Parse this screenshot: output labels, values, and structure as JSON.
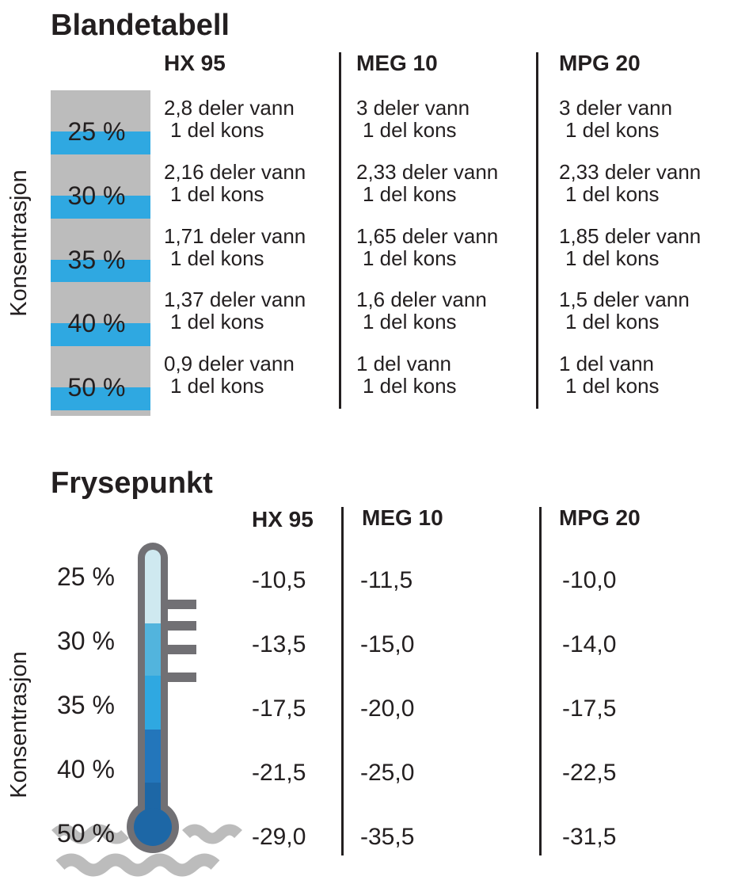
{
  "colors": {
    "text": "#231f20",
    "bar_gray": "#bcbcbc",
    "bar_blue": "#2fa8e1",
    "divider": "#231f20",
    "thermometer_outline": "#717074",
    "wave_gray": "#bcbcbc",
    "thermo_segments": [
      "#cfe9f0",
      "#52b4dd",
      "#2fa8e1",
      "#2376bb",
      "#1d67a6"
    ],
    "bulb": "#1d67a6"
  },
  "mixing_table": {
    "title": "Blandetabell",
    "axis_label": "Konsentrasjon",
    "columns": [
      "HX 95",
      "MEG 10",
      "MPG 20"
    ],
    "rows": [
      {
        "concentration": "25 %",
        "cells": [
          [
            "2,8 deler vann",
            "1 del kons"
          ],
          [
            "3 deler vann",
            "1 del kons"
          ],
          [
            "3 deler vann",
            "1 del kons"
          ]
        ]
      },
      {
        "concentration": "30 %",
        "cells": [
          [
            "2,16 deler vann",
            "1 del kons"
          ],
          [
            "2,33 deler vann",
            "1 del kons"
          ],
          [
            "2,33 deler vann",
            "1 del kons"
          ]
        ]
      },
      {
        "concentration": "35 %",
        "cells": [
          [
            "1,71 deler vann",
            "1 del kons"
          ],
          [
            "1,65 deler vann",
            "1 del kons"
          ],
          [
            "1,85 deler vann",
            "1 del kons"
          ]
        ]
      },
      {
        "concentration": "40 %",
        "cells": [
          [
            "1,37 deler vann",
            "1 del kons"
          ],
          [
            "1,6 deler vann",
            "1 del kons"
          ],
          [
            "1,5 deler vann",
            "1 del kons"
          ]
        ]
      },
      {
        "concentration": "50 %",
        "cells": [
          [
            "0,9 deler vann",
            "1 del kons"
          ],
          [
            "1 del vann",
            "1 del kons"
          ],
          [
            "1 del vann",
            "1 del kons"
          ]
        ]
      }
    ]
  },
  "freezing_table": {
    "title": "Frysepunkt",
    "axis_label": "Konsentrasjon",
    "columns": [
      "HX 95",
      "MEG 10",
      "MPG 20"
    ],
    "rows": [
      {
        "concentration": "25 %",
        "values": [
          "-10,5",
          "-11,5",
          "-10,0"
        ]
      },
      {
        "concentration": "30 %",
        "values": [
          "-13,5",
          "-15,0",
          "-14,0"
        ]
      },
      {
        "concentration": "35 %",
        "values": [
          "-17,5",
          "-20,0",
          "-17,5"
        ]
      },
      {
        "concentration": "40 %",
        "values": [
          "-21,5",
          "-25,0",
          "-22,5"
        ]
      },
      {
        "concentration": "50 %",
        "values": [
          "-29,0",
          "-35,5",
          "-31,5"
        ]
      }
    ]
  },
  "chart_data": [
    {
      "type": "table",
      "title": "Blandetabell",
      "ylabel": "Konsentrasjon",
      "columns": [
        "Konsentrasjon",
        "HX 95",
        "MEG 10",
        "MPG 20"
      ],
      "rows": [
        [
          "25 %",
          "2,8 deler vann : 1 del kons",
          "3 deler vann : 1 del kons",
          "3 deler vann : 1 del kons"
        ],
        [
          "30 %",
          "2,16 deler vann : 1 del kons",
          "2,33 deler vann : 1 del kons",
          "2,33 deler vann : 1 del kons"
        ],
        [
          "35 %",
          "1,71 deler vann : 1 del kons",
          "1,65 deler vann : 1 del kons",
          "1,85 deler vann : 1 del kons"
        ],
        [
          "40 %",
          "1,37 deler vann : 1 del kons",
          "1,6 deler vann : 1 del kons",
          "1,5 deler vann : 1 del kons"
        ],
        [
          "50 %",
          "0,9 deler vann : 1 del kons",
          "1 del vann : 1 del kons",
          "1 del vann : 1 del kons"
        ]
      ]
    },
    {
      "type": "table",
      "title": "Frysepunkt",
      "ylabel": "Konsentrasjon",
      "columns": [
        "Konsentrasjon",
        "HX 95",
        "MEG 10",
        "MPG 20"
      ],
      "rows": [
        [
          "25 %",
          -10.5,
          -11.5,
          -10.0
        ],
        [
          "30 %",
          -13.5,
          -15.0,
          -14.0
        ],
        [
          "35 %",
          -17.5,
          -20.0,
          -17.5
        ],
        [
          "40 %",
          -21.5,
          -25.0,
          -22.5
        ],
        [
          "50 %",
          -29.0,
          -35.5,
          -31.5
        ]
      ]
    }
  ]
}
